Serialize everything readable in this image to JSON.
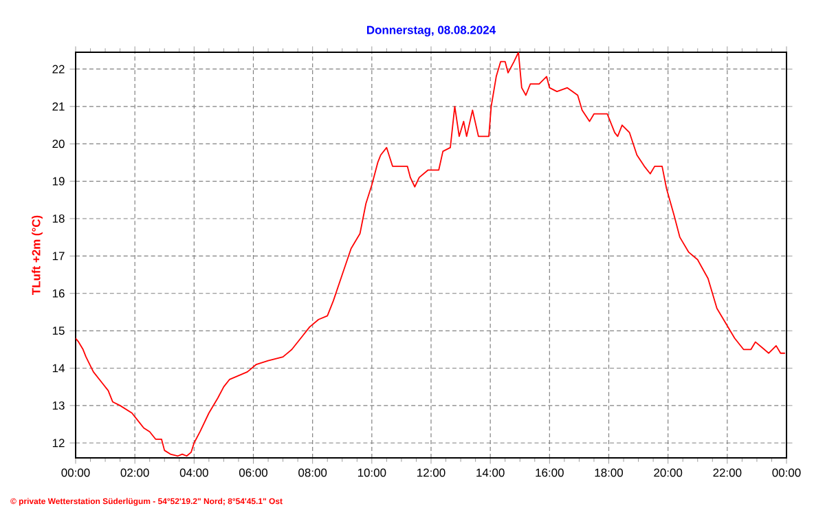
{
  "chart_data": {
    "type": "line",
    "title": "Donnerstag, 08.08.2024",
    "ylabel": "TLuft +2m (°C)",
    "annotations": [
      "© private Wetterstation Süderlügum - 54°52'19.2\" Nord; 8°54'45.1\" Ost"
    ],
    "series": [
      {
        "color": "#ff0000",
        "x": [
          0,
          0.1,
          0.25,
          0.35,
          0.6,
          0.9,
          1.1,
          1.25,
          1.5,
          1.9,
          2.1,
          2.3,
          2.5,
          2.7,
          2.9,
          3.0,
          3.2,
          3.45,
          3.6,
          3.75,
          3.9,
          4.0,
          4.2,
          4.5,
          4.8,
          5.0,
          5.2,
          5.5,
          5.8,
          6.1,
          6.5,
          7.0,
          7.3,
          7.6,
          7.9,
          8.2,
          8.5,
          8.7,
          9.0,
          9.3,
          9.6,
          9.8,
          10.0,
          10.2,
          10.3,
          10.5,
          10.7,
          11.2,
          11.3,
          11.45,
          11.6,
          11.9,
          12.26,
          12.4,
          12.65,
          12.8,
          12.95,
          13.1,
          13.2,
          13.4,
          13.6,
          13.95,
          14.03,
          14.2,
          14.35,
          14.5,
          14.6,
          14.8,
          14.95,
          15.06,
          15.2,
          15.35,
          15.65,
          15.9,
          16.0,
          16.25,
          16.6,
          16.95,
          17.1,
          17.35,
          17.5,
          17.95,
          18.2,
          18.3,
          18.45,
          18.7,
          18.95,
          19.2,
          19.4,
          19.55,
          19.8,
          19.95,
          20.2,
          20.4,
          20.7,
          21.0,
          21.35,
          21.65,
          21.95,
          22.25,
          22.55,
          22.8,
          22.95,
          23.25,
          23.4,
          23.65,
          23.8,
          23.95
        ],
        "values": [
          14.8,
          14.7,
          14.5,
          14.3,
          13.9,
          13.6,
          13.4,
          13.1,
          13.0,
          12.8,
          12.6,
          12.4,
          12.3,
          12.1,
          12.1,
          11.8,
          11.7,
          11.65,
          11.7,
          11.65,
          11.75,
          12.0,
          12.3,
          12.8,
          13.2,
          13.5,
          13.7,
          13.8,
          13.9,
          14.1,
          14.2,
          14.3,
          14.5,
          14.8,
          15.1,
          15.3,
          15.4,
          15.8,
          16.5,
          17.2,
          17.6,
          18.4,
          18.9,
          19.5,
          19.7,
          19.9,
          19.4,
          19.4,
          19.1,
          18.85,
          19.1,
          19.3,
          19.3,
          19.8,
          19.9,
          21.0,
          20.2,
          20.6,
          20.2,
          20.9,
          20.2,
          20.2,
          21.0,
          21.8,
          22.2,
          22.2,
          21.9,
          22.2,
          22.45,
          21.5,
          21.3,
          21.6,
          21.6,
          21.8,
          21.5,
          21.4,
          21.5,
          21.3,
          20.9,
          20.6,
          20.8,
          20.8,
          20.3,
          20.2,
          20.5,
          20.3,
          19.7,
          19.4,
          19.2,
          19.4,
          19.4,
          18.8,
          18.1,
          17.5,
          17.1,
          16.9,
          16.4,
          15.6,
          15.2,
          14.8,
          14.5,
          14.5,
          14.7,
          14.5,
          14.4,
          14.6,
          14.4,
          14.4
        ]
      }
    ],
    "xlim": [
      0,
      24
    ],
    "ylim": [
      11.6,
      22.45
    ],
    "xticks": [
      {
        "value": 0,
        "label": "00:00"
      },
      {
        "value": 2,
        "label": "02:00"
      },
      {
        "value": 4,
        "label": "04:00"
      },
      {
        "value": 6,
        "label": "06:00"
      },
      {
        "value": 8,
        "label": "08:00"
      },
      {
        "value": 10,
        "label": "10:00"
      },
      {
        "value": 12,
        "label": "12:00"
      },
      {
        "value": 14,
        "label": "14:00"
      },
      {
        "value": 16,
        "label": "16:00"
      },
      {
        "value": 18,
        "label": "18:00"
      },
      {
        "value": 20,
        "label": "20:00"
      },
      {
        "value": 22,
        "label": "22:00"
      },
      {
        "value": 24,
        "label": "00:00"
      }
    ],
    "yticks": [
      12,
      13,
      14,
      15,
      16,
      17,
      18,
      19,
      20,
      21,
      22
    ],
    "grid": true,
    "legend": false,
    "line_style": "solid",
    "marker": "none"
  }
}
